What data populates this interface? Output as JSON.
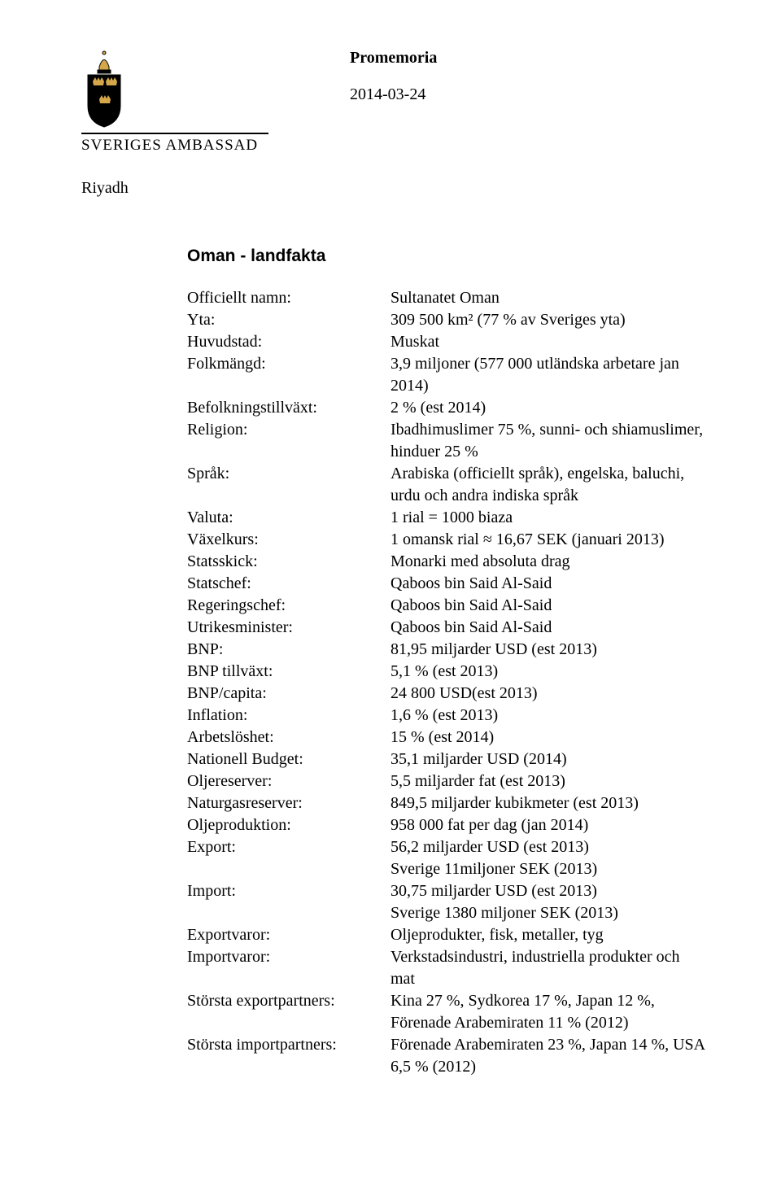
{
  "header": {
    "doc_type": "Promemoria",
    "date": "2014-03-24",
    "city": "Riyadh",
    "org_name": "SVERIGES AMBASSAD"
  },
  "title": "Oman - landfakta",
  "logo": {
    "crown_fill": "#d4a84a",
    "shield_fill": "#000000",
    "text_color": "#000000",
    "rule_color": "#000000"
  },
  "facts": [
    {
      "label": "Officiellt namn:",
      "value": "Sultanatet Oman"
    },
    {
      "label": "Yta:",
      "value": "309 500 km² (77 % av Sveriges yta)"
    },
    {
      "label": "Huvudstad:",
      "value": "Muskat"
    },
    {
      "label": "Folkmängd:",
      "value": "3,9 miljoner (577 000 utländska arbetare jan 2014)"
    },
    {
      "label": "Befolkningstillväxt:",
      "value": "2 % (est 2014)"
    },
    {
      "label": "Religion:",
      "value": "Ibadhimuslimer 75 %, sunni- och shiamuslimer, hinduer 25 %"
    },
    {
      "label": "Språk:",
      "value": "Arabiska (officiellt språk), engelska, baluchi, urdu och andra indiska språk"
    },
    {
      "label": "Valuta:",
      "value": "1 rial = 1000 biaza"
    },
    {
      "label": "Växelkurs:",
      "value": "1 omansk rial ≈ 16,67 SEK (januari 2013)"
    },
    {
      "label": "Statsskick:",
      "value": "Monarki med absoluta drag"
    },
    {
      "label": "Statschef:",
      "value": "Qaboos bin Said Al-Said"
    },
    {
      "label": "Regeringschef:",
      "value": "Qaboos bin Said Al-Said"
    },
    {
      "label": "Utrikesminister:",
      "value": "Qaboos bin Said Al-Said"
    },
    {
      "label": "BNP:",
      "value": "81,95 miljarder USD (est 2013)"
    },
    {
      "label": "BNP tillväxt:",
      "value": "5,1 % (est 2013)"
    },
    {
      "label": "BNP/capita:",
      "value": "24 800 USD(est 2013)"
    },
    {
      "label": "Inflation:",
      "value": "1,6 % (est 2013)"
    },
    {
      "label": "Arbetslöshet:",
      "value": "15 % (est 2014)"
    },
    {
      "label": "Nationell Budget:",
      "value": "35,1 miljarder USD (2014)"
    },
    {
      "label": "Oljereserver:",
      "value": "5,5 miljarder fat (est 2013)"
    },
    {
      "label": "Naturgasreserver:",
      "value": "849,5 miljarder kubikmeter (est 2013)"
    },
    {
      "label": "Oljeproduktion:",
      "value": "958 000 fat per dag (jan 2014)"
    },
    {
      "label": "Export:",
      "value": "56,2 miljarder USD (est 2013)\nSverige 11miljoner SEK (2013)"
    },
    {
      "label": "Import:",
      "value": "30,75 miljarder USD (est 2013)\nSverige 1380 miljoner SEK (2013)"
    },
    {
      "label": "Exportvaror:",
      "value": "Oljeprodukter, fisk, metaller, tyg"
    },
    {
      "label": "Importvaror:",
      "value": "Verkstadsindustri, industriella produkter och mat"
    },
    {
      "label": "Största exportpartners:",
      "value": "Kina 27 %, Sydkorea 17 %, Japan 12 %, Förenade Arabemiraten 11 % (2012)"
    },
    {
      "label": "Största importpartners:",
      "value": "Förenade Arabemiraten 23 %, Japan 14 %, USA 6,5 % (2012)"
    }
  ],
  "typography": {
    "body_font": "Garamond",
    "title_font": "Arial",
    "body_size_pt": 15,
    "title_size_pt": 16,
    "logo_font": "serif"
  }
}
